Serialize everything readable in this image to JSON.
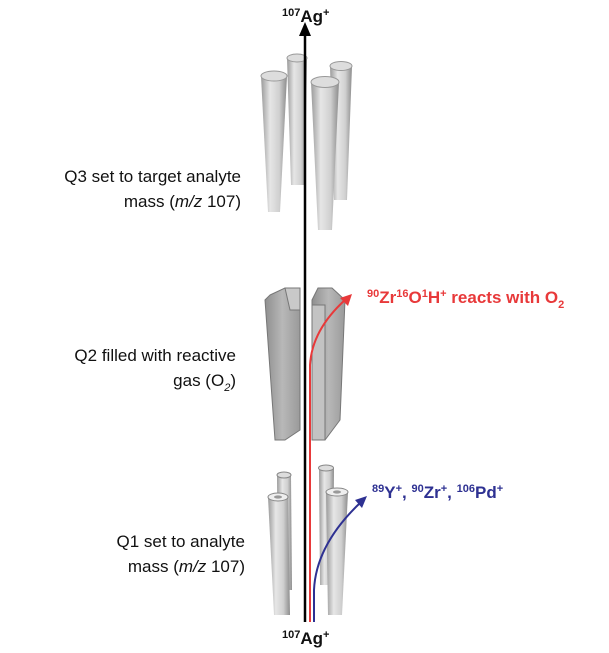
{
  "top_label": [
    "107",
    "Ag",
    "+"
  ],
  "bottom_label": [
    "107",
    "Ag",
    "+"
  ],
  "q3_label": {
    "line1": "Q3 set to target analyte",
    "line2": [
      "mass (",
      "m/z",
      " 107)"
    ]
  },
  "q2_label": {
    "line1": "Q2 filled with reactive",
    "line2": [
      "gas (O",
      "2",
      ")"
    ]
  },
  "q1_label": {
    "line1": "Q1 set to analyte",
    "line2": [
      "mass (",
      "m/z",
      " 107)"
    ]
  },
  "red_label": [
    "90",
    "Zr",
    "16",
    "O",
    "1",
    "H",
    "+",
    " reacts with O",
    "2"
  ],
  "blue_label": [
    "89",
    "Y",
    "+",
    ", ",
    "90",
    "Zr",
    "+",
    ", ",
    "106",
    "Pd",
    "+"
  ]
}
